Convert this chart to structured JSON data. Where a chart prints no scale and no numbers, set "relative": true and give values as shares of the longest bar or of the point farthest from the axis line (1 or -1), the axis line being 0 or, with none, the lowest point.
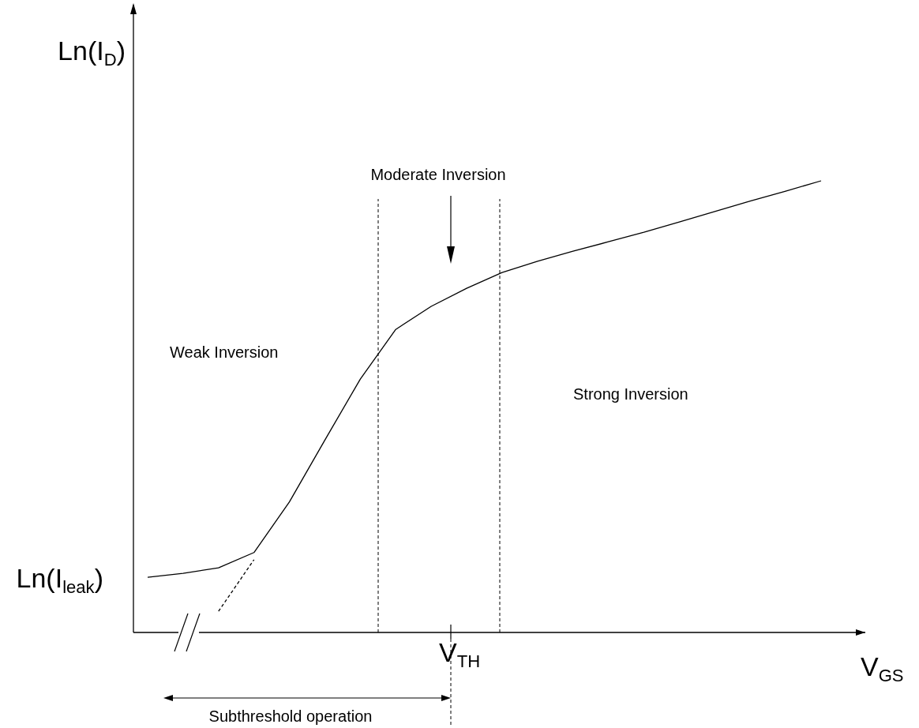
{
  "chart_data": {
    "type": "line",
    "relative": true,
    "xlabel": "V$_{GS}$",
    "ylabel": "Ln(I$_{D}$)",
    "categories": [
      null,
      null,
      null,
      null,
      null,
      null,
      null,
      null,
      null,
      null,
      null,
      null,
      null,
      null,
      null,
      null,
      null,
      null,
      null,
      null
    ],
    "series": [
      {
        "color": "#000000",
        "line_style": "solid",
        "values": [
          0.122,
          0.131,
          0.143,
          0.177,
          0.289,
          0.426,
          0.561,
          0.671,
          0.722,
          0.762,
          0.797,
          0.822,
          0.844,
          0.865,
          0.886,
          0.909,
          0.932,
          0.955,
          0.977,
          1.0
        ]
      },
      {
        "color": "#000000",
        "line_style": "dashed",
        "values": [
          null,
          null,
          0.047,
          0.161,
          null,
          null,
          null,
          null,
          null,
          null,
          null,
          null,
          null,
          null,
          null,
          null,
          null,
          null,
          null,
          null
        ]
      }
    ],
    "annotations": [
      "Ln(I$_{leak}$)",
      "Weak Inversion",
      "Moderate Inversion",
      "Strong Inversion",
      "Subthreshold operation",
      "V$_{TH}$"
    ]
  }
}
